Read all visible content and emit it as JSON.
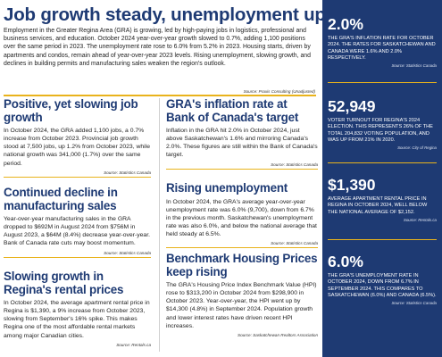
{
  "header": {
    "title": "Job growth steady, unemployment up",
    "intro": "Employment in the Greater Regina Area (GRA) is growing, led by high-paying jobs in logistics, professional and business services, and education. October 2024 year-over-year growth slowed to 0.7%, adding 1,100 positions over the same period in 2023. The unemployment rate rose to 6.0% from 5.2% in 2023. Housing starts, driven by apartments and condos, remain ahead of year-over-year 2023 levels. Rising unemployment, slowing growth, and declines in building permits and manufacturing sales weaken the region's outlook.",
    "source": "Source: Praxis Consulting (Unadjusted)"
  },
  "left_column": [
    {
      "title": "Positive, yet slowing job growth",
      "body": "In October 2024, the GRA added 1,100 jobs, a 0.7% increase from October 2023. Provincial job growth stood at 7,500 jobs, up 1.2% from October 2023, while national growth was 341,000 (1.7%) over the same period.",
      "source": "Source: Statistics Canada"
    },
    {
      "title": "Continued decline in manufacturing sales",
      "body": "Year-over-year manufacturing sales in the GRA dropped to $692M in August 2024 from $756M in August 2023, a $64M (8.4%) decrease year-over-year. Bank of Canada rate cuts may boost momentum.",
      "source": "Source: Statistics Canada"
    },
    {
      "title": "Slowing growth in Regina's rental prices",
      "body": "In October 2024, the average apartment rental price in Regina is $1,390, a 9% increase from October 2023, slowing from September's 16% spike. This makes Regina one of the most affordable rental markets among major Canadian cities.",
      "source": "Source: Rentals.ca"
    }
  ],
  "right_column": [
    {
      "title": "GRA's inflation rate at Bank of Canada's target",
      "body": "Inflation in the GRA hit 2.0% in October 2024, just above Saskatchewan's 1.6% and mirroring Canada's 2.0%. These figures are still within the Bank of Canada's target.",
      "source": "Source: Statistics Canada"
    },
    {
      "title": "Rising unemployment",
      "body": "In October 2024, the GRA's average year-over-year unemployment rate was 6.0% (9,700), down from 6.7% in the previous month. Saskatchewan's unemployment rate was also 6.0%, and below the national average that held steady at 6.5%.",
      "source": "Source: Statistics Canada"
    },
    {
      "title": "Benchmark Housing Prices keep rising",
      "body": "The GRA's Housing Price Index Benchmark Value (HPI) rose to $313,200 in October 2024 from $298,900 in October 2023. Year-over-year, the HPI went up by $14,300 (4.8%) in September 2024. Population growth and lower interest rates have driven recent HPI increases.",
      "source": "Source: Saskatchewan Realtors Association"
    }
  ],
  "sidebar": {
    "stats": [
      {
        "value": "2.0%",
        "text": "The GRA's inflation rate for October 2024. The rates for Saskatchewan and Canada were 1.6% and 2.0% respectively.",
        "source": "Source: Statistics Canada"
      },
      {
        "value": "52,949",
        "text": "Voter turnout for Regina's 2024 election. This represents 26% of the total 204,832 voting population, and was up from 21% in 2020.",
        "source": "Source: City of Regina"
      },
      {
        "value": "$1,390",
        "text": "Average apartment rental price in Regina in October 2024, well below the national average of $2,152.",
        "source": "Source: Rentals.ca"
      },
      {
        "value": "6.0%",
        "text": "The GRA's unemployment rate in October 2024, down from 6.7% in September 2024. This compares to Saskatchewan (6.0%) and Canada (6.5%).",
        "source": "Source: Statistics Canada"
      }
    ]
  },
  "colors": {
    "brand_navy": "#1e3a73",
    "accent_gold": "#e9b31c"
  }
}
